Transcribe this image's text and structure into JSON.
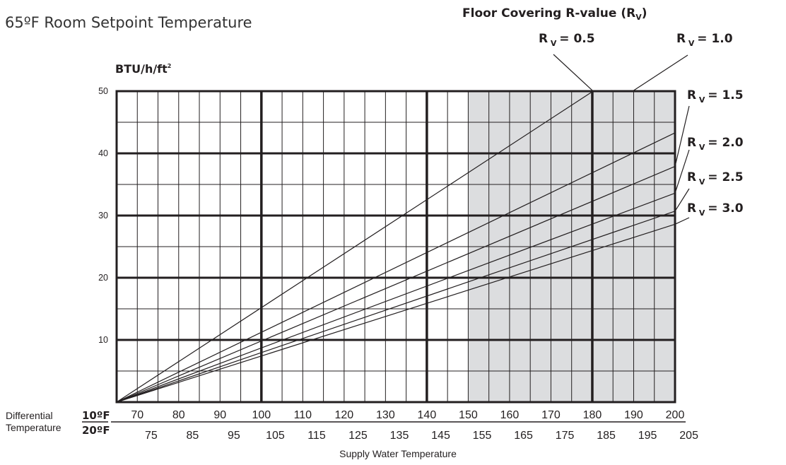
{
  "page_title": "65ºF Room Setpoint Temperature",
  "chart_data": {
    "type": "line",
    "legend_title": "Floor Covering R-value (R",
    "legend_title_sub": "V",
    "legend_title_close": ")",
    "ylabel": "BTU/h/ft",
    "ylabel_sup": "2",
    "xlabel": "Supply Water Temperature",
    "differential_label_line1": "Differential",
    "differential_label_line2": "Temperature",
    "diff_10_label": "10ºF",
    "diff_20_label": "20ºF",
    "xlim_10F": [
      65,
      200
    ],
    "ylim": [
      0,
      50
    ],
    "y_ticks": [
      "50",
      "40",
      "30",
      "20",
      "10"
    ],
    "x_ticks_10F": [
      "70",
      "80",
      "90",
      "100",
      "110",
      "120",
      "130",
      "140",
      "150",
      "160",
      "170",
      "180",
      "190",
      "200"
    ],
    "x_ticks_20F": [
      "75",
      "85",
      "95",
      "105",
      "115",
      "125",
      "135",
      "145",
      "155",
      "165",
      "175",
      "185",
      "195",
      "205"
    ],
    "shaded_region_10F": [
      150,
      200
    ],
    "grid": true,
    "series": [
      {
        "name": "R = 0.5",
        "r_prefix": "R",
        "r_sub": "V",
        "r_value": "= 0.5",
        "x": [
          65,
          180.2
        ],
        "y": [
          0,
          50
        ]
      },
      {
        "name": "R = 1.0",
        "r_prefix": "R",
        "r_sub": "V",
        "r_value": "= 1.0",
        "x": [
          65,
          200
        ],
        "y": [
          0,
          43.3
        ]
      },
      {
        "name": "R = 1.5",
        "r_prefix": "R",
        "r_sub": "V",
        "r_value": "= 1.5",
        "x": [
          65,
          200
        ],
        "y": [
          0,
          37.9
        ]
      },
      {
        "name": "R = 2.0",
        "r_prefix": "R",
        "r_sub": "V",
        "r_value": "= 2.0",
        "x": [
          65,
          200
        ],
        "y": [
          0,
          33.6
        ]
      },
      {
        "name": "R = 2.5",
        "r_prefix": "R",
        "r_sub": "V",
        "r_value": "= 2.5",
        "x": [
          65,
          200
        ],
        "y": [
          0,
          30.7
        ]
      },
      {
        "name": "R = 3.0",
        "r_prefix": "R",
        "r_sub": "V",
        "r_value": "= 3.0",
        "x": [
          65,
          200
        ],
        "y": [
          0,
          28.6
        ]
      }
    ]
  }
}
